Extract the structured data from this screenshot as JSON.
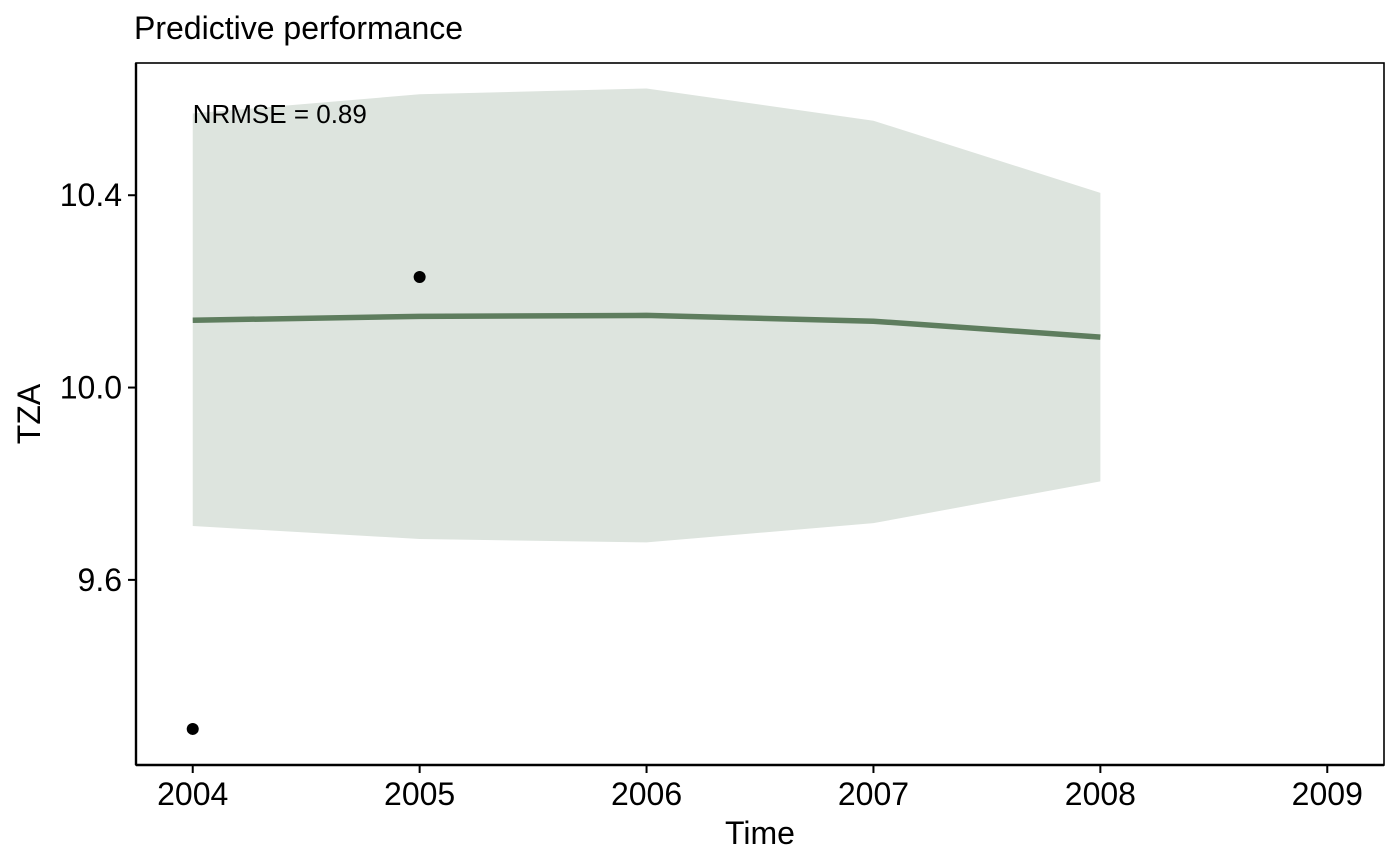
{
  "chart_data": {
    "type": "line",
    "title": "Predictive performance",
    "xlabel": "Time",
    "ylabel": "TZA",
    "xlim": [
      2003.75,
      2009.25
    ],
    "ylim": [
      9.215,
      10.675
    ],
    "x_ticks": [
      2004,
      2005,
      2006,
      2007,
      2008,
      2009
    ],
    "y_ticks": [
      9.6,
      10.0,
      10.4
    ],
    "y_tick_labels": [
      "9.6",
      "10.0",
      "10.4"
    ],
    "grid": false,
    "colors": {
      "line": "#5e7d5e",
      "band": "#dde4de",
      "points": "#000000",
      "axis": "#000000"
    },
    "series": [
      {
        "kind": "prediction",
        "x": [
          2004,
          2005,
          2006,
          2007,
          2008
        ],
        "y": [
          10.14,
          10.148,
          10.15,
          10.138,
          10.105
        ]
      }
    ],
    "band": {
      "x": [
        2004,
        2005,
        2006,
        2007,
        2008
      ],
      "lower": [
        9.712,
        9.685,
        9.678,
        9.718,
        9.805
      ],
      "upper": [
        10.57,
        10.61,
        10.622,
        10.555,
        10.405
      ]
    },
    "observed": {
      "x": [
        2004,
        2005
      ],
      "y": [
        9.29,
        10.23
      ]
    },
    "annotations": [
      {
        "text": "NRMSE = 0.89",
        "x": 2004,
        "y": 10.55
      }
    ]
  }
}
